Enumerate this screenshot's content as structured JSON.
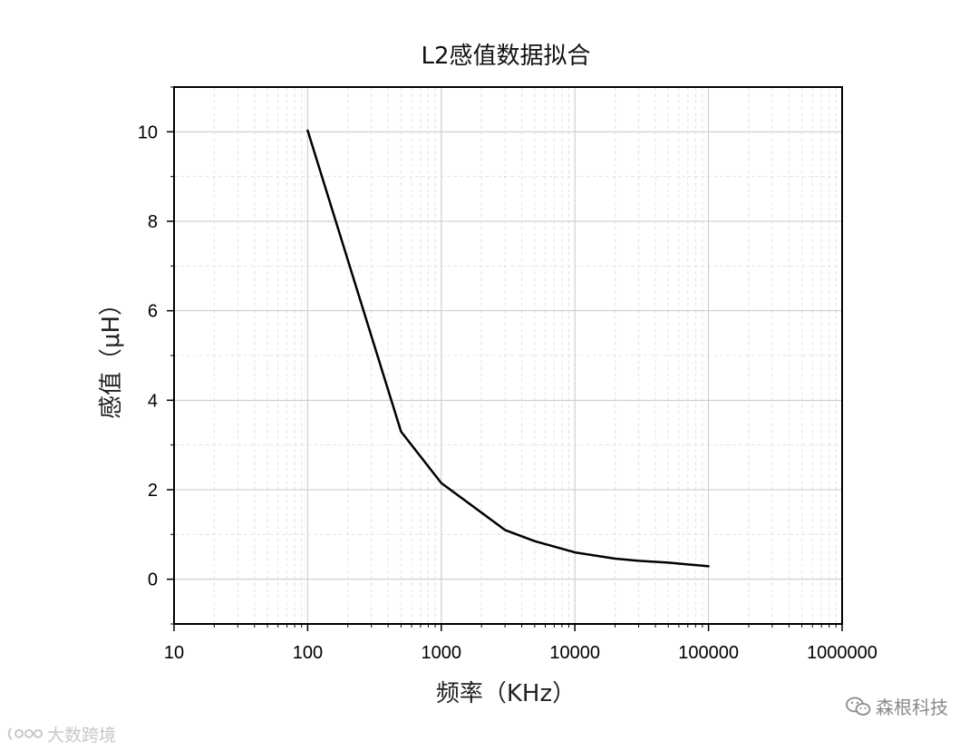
{
  "chart_data": {
    "type": "line",
    "title": "L2感值数据拟合",
    "xlabel": "频率（KHz）",
    "ylabel": "感值（μH）",
    "xscale": "log",
    "xlim": [
      10,
      1000000
    ],
    "ylim": [
      -1,
      11
    ],
    "grid": true,
    "x_ticks": [
      "10",
      "100",
      "1000",
      "10000",
      "100000",
      "1000000"
    ],
    "y_ticks": [
      "0",
      "2",
      "4",
      "6",
      "8",
      "10"
    ],
    "series": [
      {
        "color": "#000000",
        "x": [
          100,
          500,
          1000,
          3000,
          5000,
          10000,
          20000,
          30000,
          50000,
          100000
        ],
        "y": [
          10.03,
          3.3,
          2.15,
          1.1,
          0.85,
          0.6,
          0.46,
          0.41,
          0.37,
          0.29
        ]
      }
    ]
  },
  "watermarks": {
    "right": "森根科技",
    "left": "大数跨境"
  }
}
